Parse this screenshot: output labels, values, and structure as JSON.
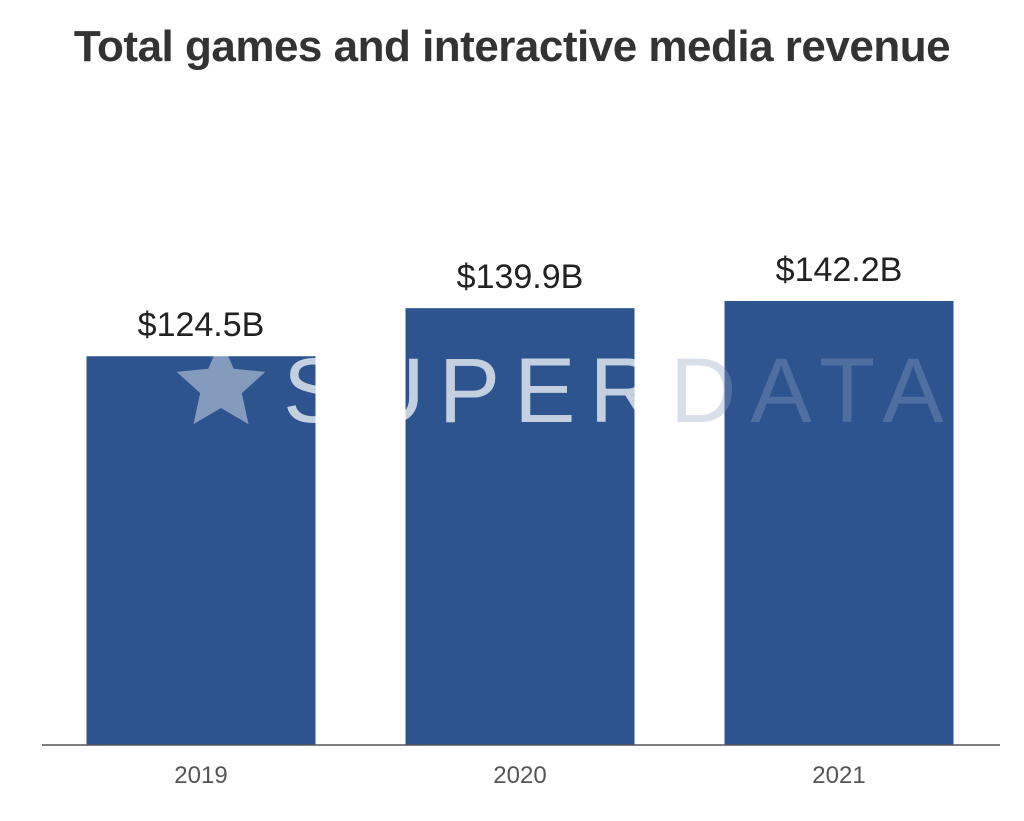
{
  "chart_data": {
    "type": "bar",
    "title": "Total games and interactive media revenue",
    "categories": [
      "2019",
      "2020",
      "2021"
    ],
    "values": [
      124.5,
      139.9,
      142.2
    ],
    "data_labels": [
      "$124.5B",
      "$139.9B",
      "$142.2B"
    ],
    "ylim": [
      0,
      160
    ],
    "grid": false,
    "legend": "none",
    "bar_color": "#2e548f"
  },
  "watermark": {
    "text_bold": "SUPER",
    "text_light": "DATA",
    "icon": "star-icon"
  }
}
